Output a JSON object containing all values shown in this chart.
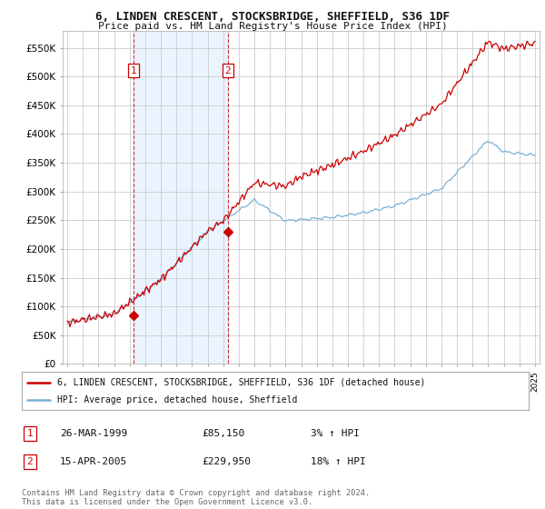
{
  "title": "6, LINDEN CRESCENT, STOCKSBRIDGE, SHEFFIELD, S36 1DF",
  "subtitle": "Price paid vs. HM Land Registry's House Price Index (HPI)",
  "ytick_values": [
    0,
    50000,
    100000,
    150000,
    200000,
    250000,
    300000,
    350000,
    400000,
    450000,
    500000,
    550000
  ],
  "ylim": [
    0,
    580000
  ],
  "xlim_start": 1994.7,
  "xlim_end": 2025.3,
  "bg_color": "#ffffff",
  "plot_bg_color": "#ffffff",
  "grid_color": "#cccccc",
  "shade_color": "#ddeeff",
  "red_color": "#cc0000",
  "blue_color": "#7ab0d4",
  "purchase1_year": 1999.23,
  "purchase1_price": 85150,
  "purchase2_year": 2005.29,
  "purchase2_price": 229950,
  "legend_label_red": "6, LINDEN CRESCENT, STOCKSBRIDGE, SHEFFIELD, S36 1DF (detached house)",
  "legend_label_blue": "HPI: Average price, detached house, Sheffield",
  "table_row1": [
    "1",
    "26-MAR-1999",
    "£85,150",
    "3% ↑ HPI"
  ],
  "table_row2": [
    "2",
    "15-APR-2005",
    "£229,950",
    "18% ↑ HPI"
  ],
  "footer": "Contains HM Land Registry data © Crown copyright and database right 2024.\nThis data is licensed under the Open Government Licence v3.0.",
  "dashed_line1_x": 1999.23,
  "dashed_line2_x": 2005.29
}
